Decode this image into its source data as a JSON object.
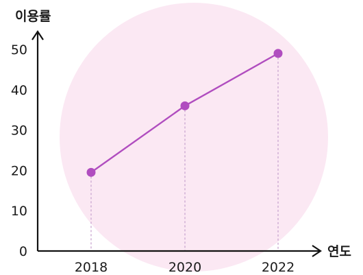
{
  "chart_data": {
    "type": "line",
    "ylabel": "이용률",
    "xlabel": "연도",
    "ylim": [
      0,
      50
    ],
    "y_ticks": [
      "0",
      "10",
      "20",
      "30",
      "40",
      "50"
    ],
    "categories": [
      "2018",
      "2020",
      "2022"
    ],
    "series": [
      {
        "values": [
          19.5,
          36,
          49
        ]
      }
    ],
    "grid": false,
    "colors": {
      "line": "#b04dbf",
      "marker": "#b04dbf",
      "background_circle": "#fbe8f3",
      "axis": "#111111",
      "guide": "#c9a4cf"
    }
  }
}
